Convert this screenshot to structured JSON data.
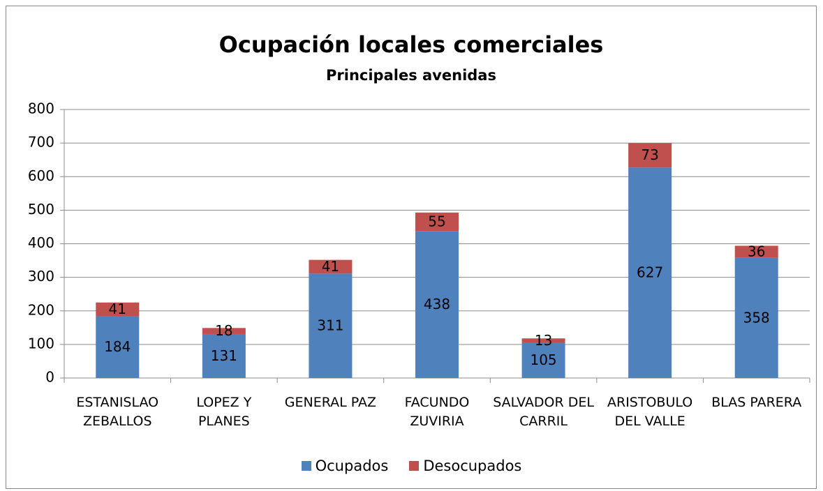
{
  "chart_data": {
    "type": "stacked_bar",
    "title": "Ocupación locales comerciales",
    "subtitle": "Principales avenidas",
    "categories": [
      "ESTANISLAO ZEBALLOS",
      "LOPEZ Y PLANES",
      "GENERAL PAZ",
      "FACUNDO ZUVIRIA",
      "SALVADOR DEL CARRIL",
      "ARISTOBULO DEL VALLE",
      "BLAS PARERA"
    ],
    "series": [
      {
        "name": "Ocupados",
        "color": "#4f81bd",
        "values": [
          184,
          131,
          311,
          438,
          105,
          627,
          358
        ]
      },
      {
        "name": "Desocupados",
        "color": "#c0504d",
        "values": [
          41,
          18,
          41,
          55,
          13,
          73,
          36
        ]
      }
    ],
    "ylim": [
      0,
      800
    ],
    "yticks": [
      0,
      100,
      200,
      300,
      400,
      500,
      600,
      700,
      800
    ],
    "grid": true,
    "legend": "bottom"
  }
}
